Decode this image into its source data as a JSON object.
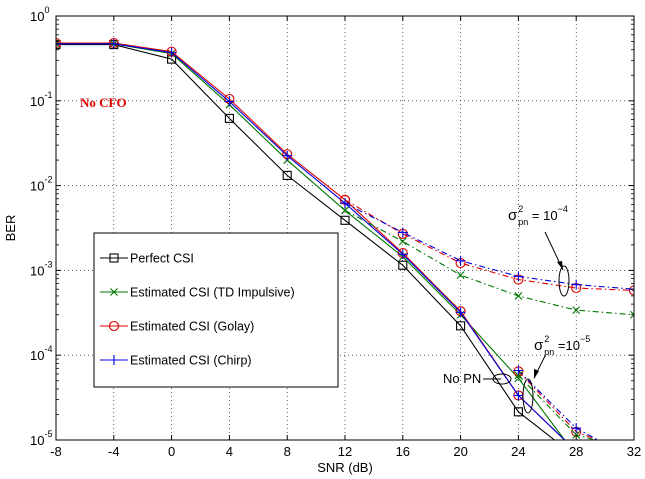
{
  "chart_data": {
    "type": "line",
    "xlabel": "SNR  (dB)",
    "ylabel": "BER",
    "xlim": [
      -8,
      32
    ],
    "ylim": [
      1e-05,
      1
    ],
    "yscale": "log",
    "grid": true,
    "x_ticks": [
      "-8",
      "-4",
      "0",
      "4",
      "8",
      "12",
      "16",
      "20",
      "24",
      "28",
      "32"
    ],
    "y_ticks": [
      {
        "base": "10",
        "exp": "0",
        "value": 1
      },
      {
        "base": "10",
        "exp": "-1",
        "value": 0.1
      },
      {
        "base": "10",
        "exp": "-2",
        "value": 0.01
      },
      {
        "base": "10",
        "exp": "-3",
        "value": 0.001
      },
      {
        "base": "10",
        "exp": "-4",
        "value": 0.0001
      },
      {
        "base": "10",
        "exp": "-5",
        "value": 1e-05
      }
    ],
    "legend_position": "lower-left",
    "series": [
      {
        "name": "Perfect CSI",
        "color": "#000000",
        "marker": "square",
        "dash": "solid",
        "x": [
          -8,
          -4,
          0,
          4,
          8,
          12,
          16,
          20,
          24,
          26.5
        ],
        "y": [
          0.46,
          0.46,
          0.31,
          0.062,
          0.0132,
          0.0039,
          0.00115,
          0.000222,
          2.15e-05,
          1e-05
        ]
      },
      {
        "name": "Estimated CSI (TD Impulsive)",
        "color": "#007700",
        "marker": "x",
        "dash": "solid",
        "x": [
          -8,
          -4,
          0,
          4,
          8,
          12,
          16,
          20,
          24,
          27.2
        ],
        "y": [
          0.47,
          0.47,
          0.36,
          0.09,
          0.02,
          0.0051,
          0.00145,
          0.0003,
          5.35e-05,
          1e-05
        ]
      },
      {
        "name": "Estimated CSI (Golay)",
        "color": "#dd0000",
        "marker": "circle",
        "dash": "solid",
        "x": [
          -8,
          -4,
          0,
          4,
          8,
          12,
          16,
          20,
          24,
          27.2
        ],
        "y": [
          0.48,
          0.48,
          0.38,
          0.105,
          0.0235,
          0.0068,
          0.0016,
          0.00033,
          3.35e-05,
          1e-05
        ]
      },
      {
        "name": "Estimated CSI (Chirp)",
        "color": "#0000dd",
        "marker": "plus",
        "dash": "solid",
        "x": [
          -8,
          -4,
          0,
          4,
          8,
          12,
          16,
          20,
          24,
          27.2
        ],
        "y": [
          0.47,
          0.47,
          0.37,
          0.098,
          0.0225,
          0.0062,
          0.00155,
          0.00032,
          3.35e-05,
          1e-05
        ]
      },
      {
        "color": "#007700",
        "marker": "x",
        "dash": "dashdot",
        "x": [
          12,
          16,
          20,
          24,
          28,
          32
        ],
        "y": [
          0.0051,
          0.0022,
          0.00088,
          0.0005,
          0.00034,
          0.0003
        ]
      },
      {
        "color": "#dd0000",
        "marker": "circle",
        "dash": "dashdot",
        "x": [
          12,
          16,
          20,
          24,
          28,
          32
        ],
        "y": [
          0.0068,
          0.0027,
          0.00122,
          0.00078,
          0.00062,
          0.00058
        ]
      },
      {
        "color": "#0000dd",
        "marker": "plus",
        "dash": "dashdot",
        "x": [
          12,
          16,
          20,
          24,
          28,
          32
        ],
        "y": [
          0.0062,
          0.0028,
          0.0013,
          0.00085,
          0.00068,
          0.0006
        ]
      },
      {
        "color": "#dd0000",
        "marker": "circle",
        "dash": "dashdot",
        "x": [
          24,
          28,
          29.5
        ],
        "y": [
          6.45e-05,
          1.25e-05,
          1e-05
        ]
      },
      {
        "color": "#0000dd",
        "marker": "plus",
        "dash": "dashdot",
        "x": [
          24,
          28,
          29.5
        ],
        "y": [
          6.6e-05,
          1.38e-05,
          1e-05
        ]
      },
      {
        "color": "#007700",
        "marker": "x",
        "dash": "dashdot",
        "x": [
          24,
          28,
          29.3
        ],
        "y": [
          5.8e-05,
          1.15e-05,
          1e-05
        ]
      }
    ],
    "annotations": {
      "no_cfo": "No CFO",
      "sigma_symbol": "σ",
      "sigma_sup": "2",
      "sigma_sub": "pn",
      "pn4_eq": " = 10",
      "pn4_exp": "−4",
      "pn5_eq": " =10",
      "pn5_exp": "−5",
      "no_pn": "No PN"
    }
  }
}
